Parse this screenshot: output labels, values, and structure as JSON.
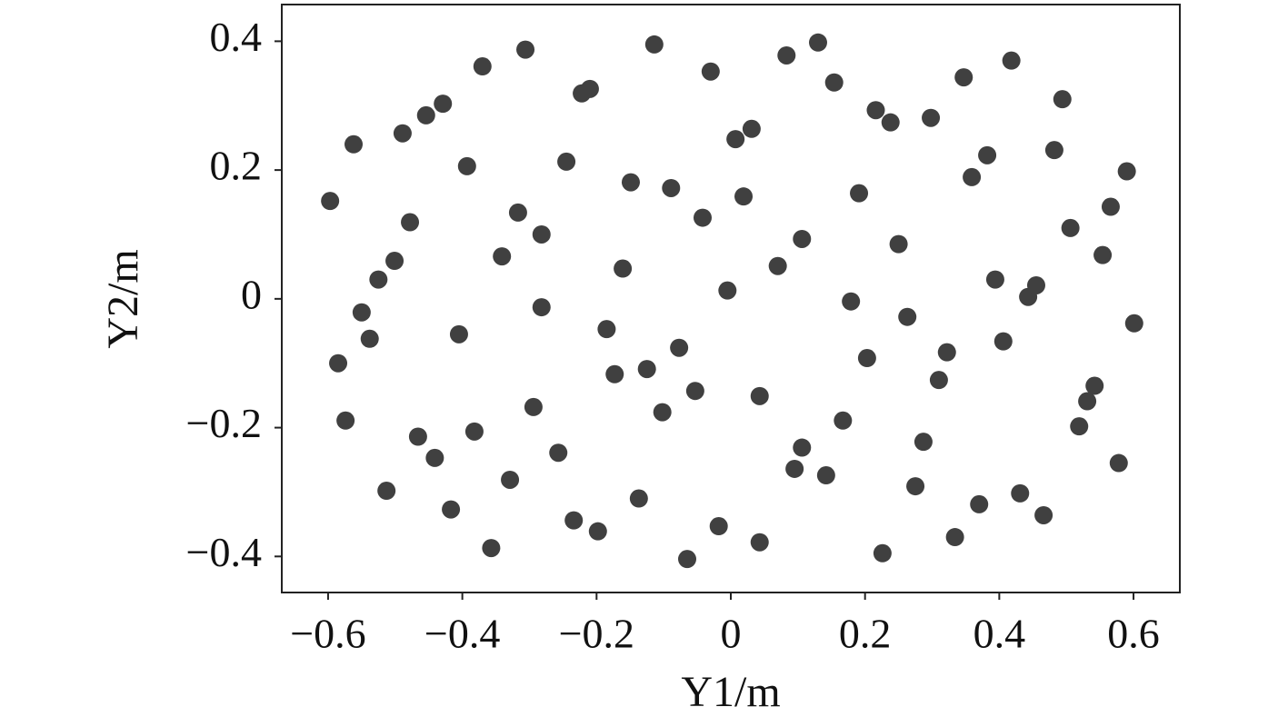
{
  "chart_data": {
    "type": "scatter",
    "x_label": "Y1/m",
    "y_label": "Y2/m",
    "color": "#404040",
    "xlim": [
      -0.669,
      0.669
    ],
    "ylim": [
      -0.456,
      0.457
    ],
    "xticks": [
      {
        "value": -0.6,
        "label": "−0.6"
      },
      {
        "value": -0.4,
        "label": "−0.4"
      },
      {
        "value": -0.2,
        "label": "−0.2"
      },
      0,
      0.2,
      0.4,
      0.6
    ],
    "yticks": [
      {
        "value": -0.4,
        "label": "−0.4"
      },
      {
        "value": -0.2,
        "label": "−0.2"
      },
      0,
      0.2,
      0.4
    ],
    "x": [
      -0.597,
      -0.562,
      -0.585,
      -0.574,
      -0.55,
      -0.538,
      -0.525,
      -0.513,
      -0.501,
      -0.489,
      -0.478,
      -0.466,
      -0.454,
      -0.441,
      -0.429,
      -0.417,
      -0.405,
      -0.393,
      -0.382,
      -0.37,
      -0.357,
      -0.341,
      -0.329,
      -0.317,
      -0.306,
      -0.294,
      -0.282,
      -0.282,
      -0.257,
      -0.245,
      -0.234,
      -0.222,
      -0.21,
      -0.198,
      -0.185,
      -0.173,
      -0.161,
      -0.149,
      -0.137,
      -0.125,
      -0.114,
      -0.102,
      -0.089,
      -0.077,
      -0.065,
      -0.053,
      -0.042,
      -0.03,
      -0.018,
      -0.005,
      0.007,
      0.019,
      0.031,
      0.043,
      0.043,
      0.07,
      0.083,
      0.095,
      0.106,
      0.106,
      0.13,
      0.142,
      0.154,
      0.167,
      0.179,
      0.191,
      0.203,
      0.216,
      0.226,
      0.238,
      0.25,
      0.263,
      0.275,
      0.287,
      0.298,
      0.31,
      0.322,
      0.334,
      0.347,
      0.359,
      0.37,
      0.382,
      0.394,
      0.406,
      0.418,
      0.431,
      0.443,
      0.455,
      0.466,
      0.482,
      0.494,
      0.506,
      0.519,
      0.531,
      0.542,
      0.554,
      0.566,
      0.578,
      0.59,
      0.601
    ],
    "values": [
      0.152,
      0.24,
      -0.1,
      -0.189,
      -0.021,
      -0.062,
      0.03,
      -0.298,
      0.059,
      0.257,
      0.119,
      -0.214,
      0.285,
      -0.247,
      0.303,
      -0.327,
      -0.055,
      0.206,
      -0.206,
      0.361,
      -0.387,
      0.066,
      -0.281,
      0.134,
      0.387,
      -0.168,
      0.1,
      -0.013,
      -0.239,
      0.213,
      -0.344,
      0.319,
      0.326,
      -0.361,
      -0.047,
      -0.117,
      0.047,
      0.181,
      -0.31,
      -0.109,
      0.395,
      -0.176,
      0.172,
      -0.076,
      -0.404,
      -0.143,
      0.126,
      0.353,
      -0.353,
      0.013,
      0.248,
      0.159,
      0.264,
      -0.151,
      -0.378,
      0.051,
      0.378,
      -0.264,
      -0.231,
      0.093,
      0.398,
      -0.274,
      0.336,
      -0.189,
      -0.004,
      0.164,
      -0.092,
      0.293,
      -0.395,
      0.274,
      0.085,
      -0.028,
      -0.291,
      -0.222,
      0.281,
      -0.126,
      -0.083,
      -0.37,
      0.344,
      0.189,
      -0.319,
      0.223,
      0.03,
      -0.066,
      0.37,
      -0.302,
      0.003,
      0.021,
      -0.336,
      0.231,
      0.31,
      0.11,
      -0.198,
      -0.159,
      -0.135,
      0.068,
      0.143,
      -0.255,
      0.198,
      -0.038
    ]
  }
}
